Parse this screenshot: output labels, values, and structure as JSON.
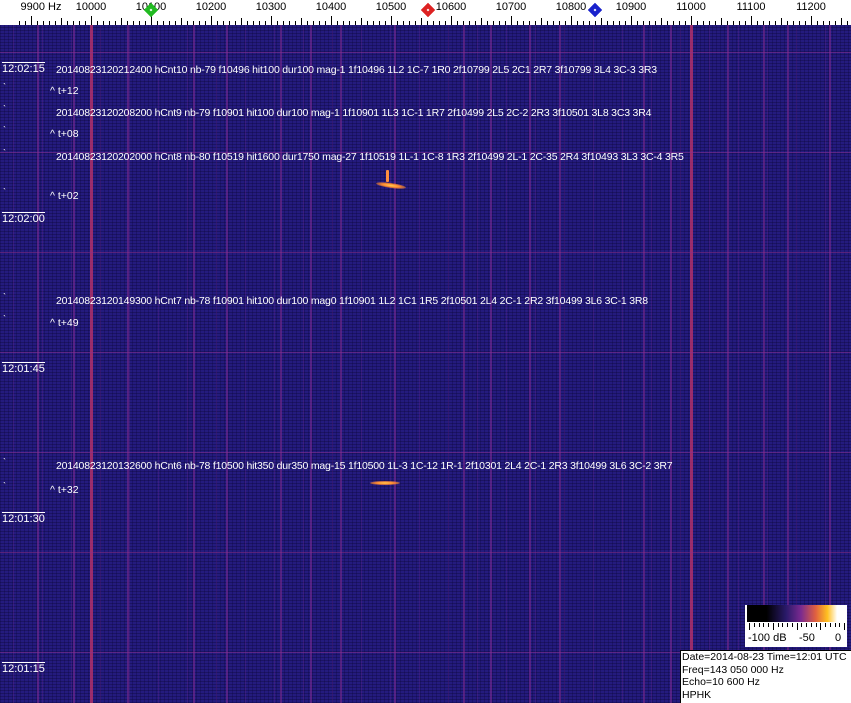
{
  "chart_data": {
    "type": "heatmap",
    "title": "",
    "x_unit_label": "Hz",
    "x_range": [
      9880,
      11265
    ],
    "x_ticks": [
      "9900 Hz",
      "10000",
      "10100",
      "10200",
      "10300",
      "10400",
      "10500",
      "10600",
      "10700",
      "10800",
      "10900",
      "11000",
      "11100",
      "11200"
    ],
    "x_tick_values": [
      9900,
      10000,
      10100,
      10200,
      10300,
      10400,
      10500,
      10600,
      10700,
      10800,
      10900,
      11000,
      11100,
      11200
    ],
    "y_ticks": [
      "12:02:15",
      "12:02:00",
      "12:01:45",
      "12:01:30",
      "12:01:15"
    ],
    "markers": [
      {
        "color": "#22bb22",
        "freq": 10100
      },
      {
        "color": "#dd2222",
        "freq": 10562
      },
      {
        "color": "#1a22cc",
        "freq": 10840
      }
    ],
    "carriers": [
      10000,
      11000
    ],
    "echoes": [
      {
        "freq": 10495,
        "time": "12:02:03",
        "intensity": "strong"
      },
      {
        "freq": 10490,
        "time": "12:01:33",
        "intensity": "medium"
      }
    ],
    "annotations": [
      {
        "text": "20140823120212400 hCnt10 nb-79 f10496 hit100 dur100 mag-1 1f10496 1L2 1C-7 1R0 2f10799 2L5 2C1 2R7 3f10799 3L4 3C-3 3R3",
        "offset": "^ t+12"
      },
      {
        "text": "20140823120208200 hCnt9 nb-79 f10901 hit100 dur100 mag-1 1f10901 1L3 1C-1 1R7 2f10499 2L5 2C-2 2R3 3f10501 3L8 3C3 3R4",
        "offset": "^ t+08"
      },
      {
        "text": "20140823120202000 hCnt8 nb-80 f10519 hit1600 dur1750 mag-27 1f10519 1L-1 1C-8 1R3 2f10499 2L-1 2C-35 2R4 3f10493 3L3 3C-4 3R5",
        "offset": "^ t+02"
      },
      {
        "text": "20140823120149300 hCnt7 nb-78 f10901 hit100 dur100 mag0 1f10901 1L2 1C1 1R5 2f10501 2L4 2C-1 2R2 3f10499 3L6 3C-1 3R8",
        "offset": "^ t+49"
      },
      {
        "text": "20140823120132600 hCnt6 nb-78 f10500 hit350 dur350 mag-15 1f10500 1L-3 1C-12 1R-1 2f10301 2L4 2C-1 2R3 3f10499 3L6 3C-2 3R7",
        "offset": "^ t+32"
      }
    ],
    "colorbar": {
      "labels": [
        "-100 dB",
        "-50",
        "0"
      ],
      "range": [
        -100,
        0
      ]
    },
    "colors": {
      "background": "#241b7e",
      "carrier": "#b0306a",
      "echo": "#ffb030"
    }
  },
  "info": {
    "line1": "Date=2014-08-23 Time=12:01 UTC",
    "line2": "Freq=143 050 000 Hz",
    "line3": "Echo=10 600 Hz",
    "line4": "HPHK"
  }
}
